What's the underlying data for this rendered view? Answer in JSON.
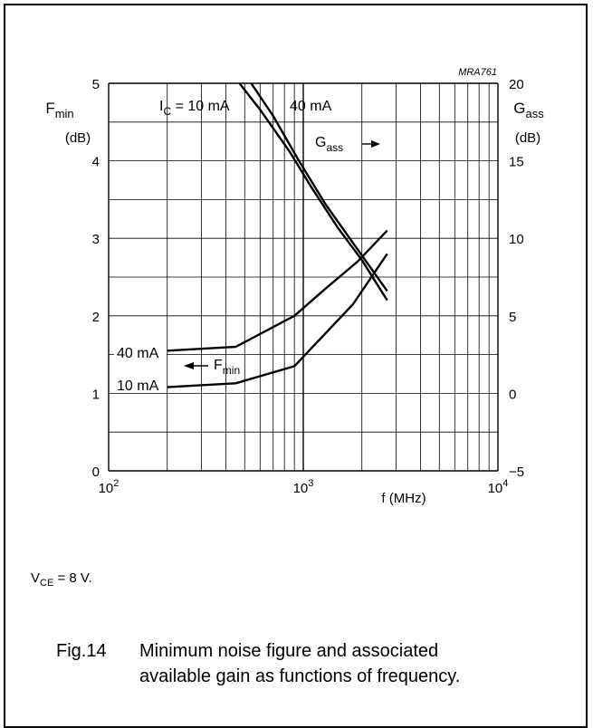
{
  "figure_id": "MRA761",
  "chart_data": {
    "type": "line",
    "x_scale": "log",
    "xlim": [
      100,
      10000
    ],
    "x_ticks": [
      {
        "v": 100,
        "base": "10",
        "exp": "2"
      },
      {
        "v": 1000,
        "base": "10",
        "exp": "3"
      },
      {
        "v": 10000,
        "base": "10",
        "exp": "4"
      }
    ],
    "xlabel": "f (MHz)",
    "left_axis": {
      "label_main": "F",
      "label_sub": "min",
      "unit": "(dB)",
      "ylim": [
        0,
        5
      ],
      "ticks": [
        "0",
        "1",
        "2",
        "3",
        "4",
        "5"
      ]
    },
    "right_axis": {
      "label_main": "G",
      "label_sub": "ass",
      "unit": "(dB)",
      "ylim": [
        -5,
        20
      ],
      "ticks": [
        "−5",
        "0",
        "5",
        "10",
        "15",
        "20"
      ]
    },
    "grid": true,
    "series": [
      {
        "name": "40 mA",
        "axis": "left",
        "x": [
          200,
          450,
          900,
          1300,
          1900,
          2700
        ],
        "y": [
          1.55,
          1.6,
          2.0,
          2.35,
          2.7,
          3.1
        ]
      },
      {
        "name": "10 mA",
        "axis": "left",
        "x": [
          200,
          450,
          900,
          1800,
          2700
        ],
        "y": [
          1.08,
          1.13,
          1.35,
          2.15,
          2.8
        ]
      },
      {
        "name": "10 mA",
        "axis": "right",
        "x": [
          470,
          600,
          850,
          1100,
          1500,
          2000,
          2700
        ],
        "y": [
          20,
          18.3,
          15.6,
          13.3,
          10.7,
          8.6,
          6.0
        ]
      },
      {
        "name": "40 mA",
        "axis": "right",
        "x": [
          540,
          700,
          950,
          1300,
          1800,
          2700
        ],
        "y": [
          20,
          17.9,
          15.0,
          12.2,
          9.7,
          6.6
        ]
      }
    ],
    "annotations": {
      "ic_prefix": "I",
      "ic_sub": "C",
      "ic_text": " = 10 mA",
      "ic_40": "40 mA",
      "gass_main": "G",
      "gass_sub": "ass",
      "fmin_main": "F",
      "fmin_sub": "min",
      "label_40": "40 mA",
      "label_10": "10 mA"
    }
  },
  "conditions": {
    "main": "V",
    "sub": "CE",
    "rest": " = 8 V."
  },
  "caption": {
    "number": "Fig.14",
    "line1": "Minimum noise figure and associated",
    "line2": "available gain as functions of frequency."
  }
}
